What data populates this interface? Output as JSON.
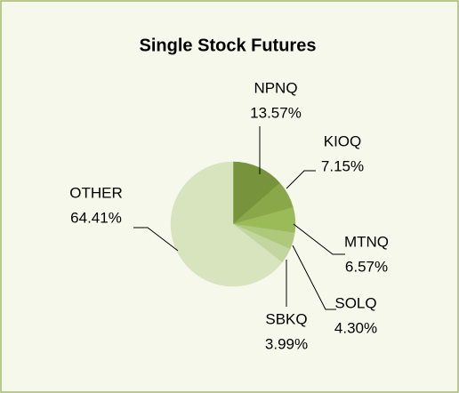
{
  "chart_data": {
    "type": "pie",
    "title": "Single Stock Futures",
    "categories": [
      "NPNQ",
      "KIOQ",
      "MTNQ",
      "SOLQ",
      "SBKQ",
      "OTHER"
    ],
    "values": [
      13.57,
      7.15,
      6.57,
      4.3,
      3.99,
      64.41
    ],
    "value_labels": [
      "13.57%",
      "7.15%",
      "6.57%",
      "4.30%",
      "3.99%",
      "64.41%"
    ],
    "colors": [
      "#77933c",
      "#8aa84a",
      "#9bbb59",
      "#afc97c",
      "#c3d69f",
      "#d7e4bd"
    ]
  }
}
